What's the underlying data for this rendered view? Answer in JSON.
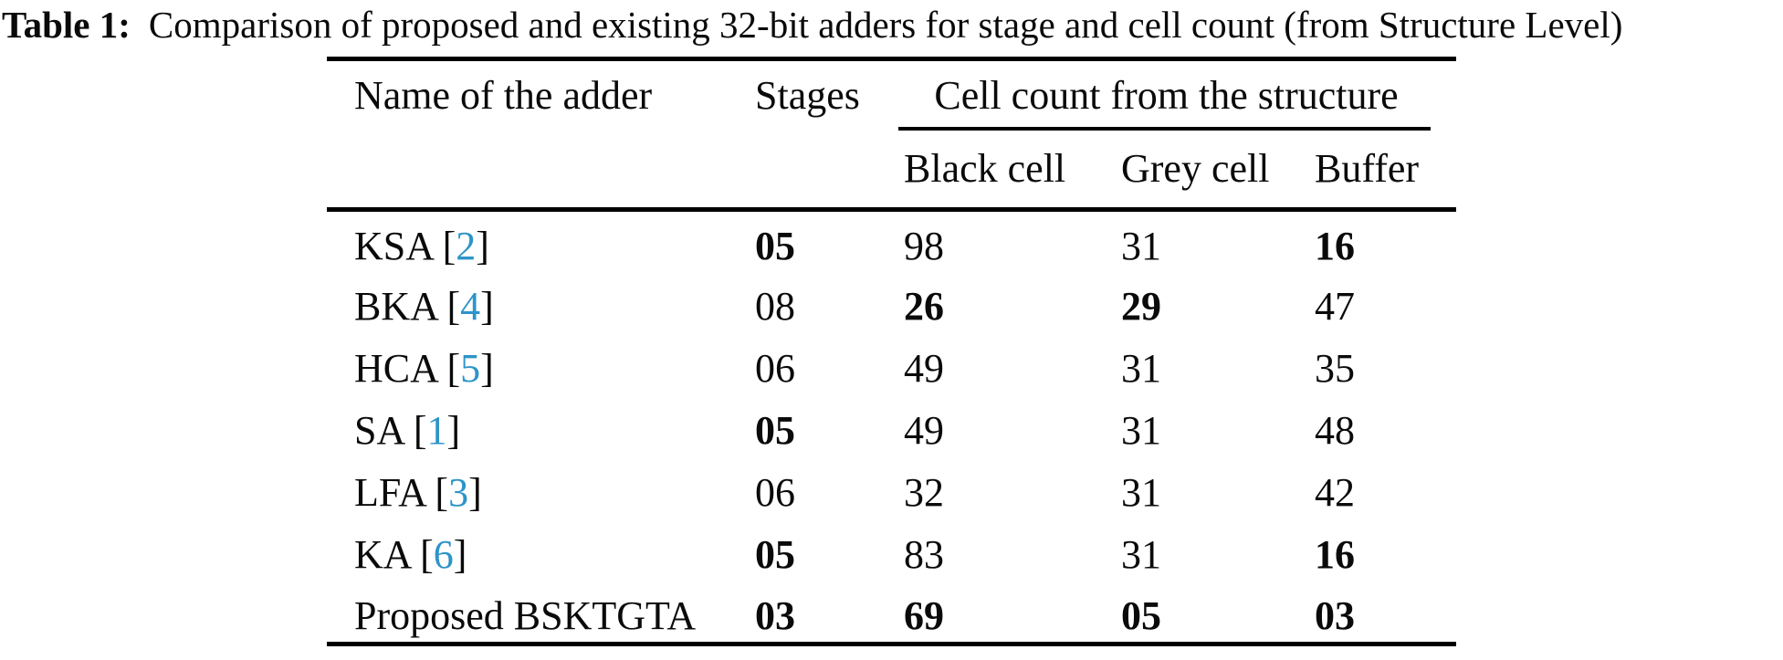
{
  "title": {
    "label": "Table 1:",
    "text": "Comparison of proposed and existing 32-bit adders for stage and cell count (from Structure Level)"
  },
  "table": {
    "headers": {
      "name": "Name of the adder",
      "stages": "Stages",
      "cell_count_group": "Cell count from the structure",
      "black": "Black cell",
      "grey": "Grey cell",
      "buffer": "Buffer"
    },
    "rows": [
      {
        "name": "KSA",
        "cite": "2",
        "cells": [
          {
            "text": "05",
            "bold": true
          },
          {
            "text": "98",
            "bold": false
          },
          {
            "text": "31",
            "bold": false
          },
          {
            "text": "16",
            "bold": true
          }
        ]
      },
      {
        "name": "BKA",
        "cite": "4",
        "cells": [
          {
            "text": "08",
            "bold": false
          },
          {
            "text": "26",
            "bold": true
          },
          {
            "text": "29",
            "bold": true
          },
          {
            "text": "47",
            "bold": false
          }
        ]
      },
      {
        "name": "HCA",
        "cite": "5",
        "cells": [
          {
            "text": "06",
            "bold": false
          },
          {
            "text": "49",
            "bold": false
          },
          {
            "text": "31",
            "bold": false
          },
          {
            "text": "35",
            "bold": false
          }
        ]
      },
      {
        "name": "SA",
        "cite": "1",
        "cells": [
          {
            "text": "05",
            "bold": true
          },
          {
            "text": "49",
            "bold": false
          },
          {
            "text": "31",
            "bold": false
          },
          {
            "text": "48",
            "bold": false
          }
        ]
      },
      {
        "name": "LFA",
        "cite": "3",
        "cells": [
          {
            "text": "06",
            "bold": false
          },
          {
            "text": "32",
            "bold": false
          },
          {
            "text": "31",
            "bold": false
          },
          {
            "text": "42",
            "bold": false
          }
        ]
      },
      {
        "name": "KA",
        "cite": "6",
        "cells": [
          {
            "text": "05",
            "bold": true
          },
          {
            "text": "83",
            "bold": false
          },
          {
            "text": "31",
            "bold": false
          },
          {
            "text": "16",
            "bold": true
          }
        ]
      },
      {
        "name": "Proposed BSKTGTA",
        "cite": null,
        "cells": [
          {
            "text": "03",
            "bold": true
          },
          {
            "text": "69",
            "bold": true
          },
          {
            "text": "05",
            "bold": true
          },
          {
            "text": "03",
            "bold": true
          }
        ]
      }
    ],
    "link_color": "#2D94C9",
    "text_color": "#0A0A0A",
    "rule_color": "#000000"
  }
}
